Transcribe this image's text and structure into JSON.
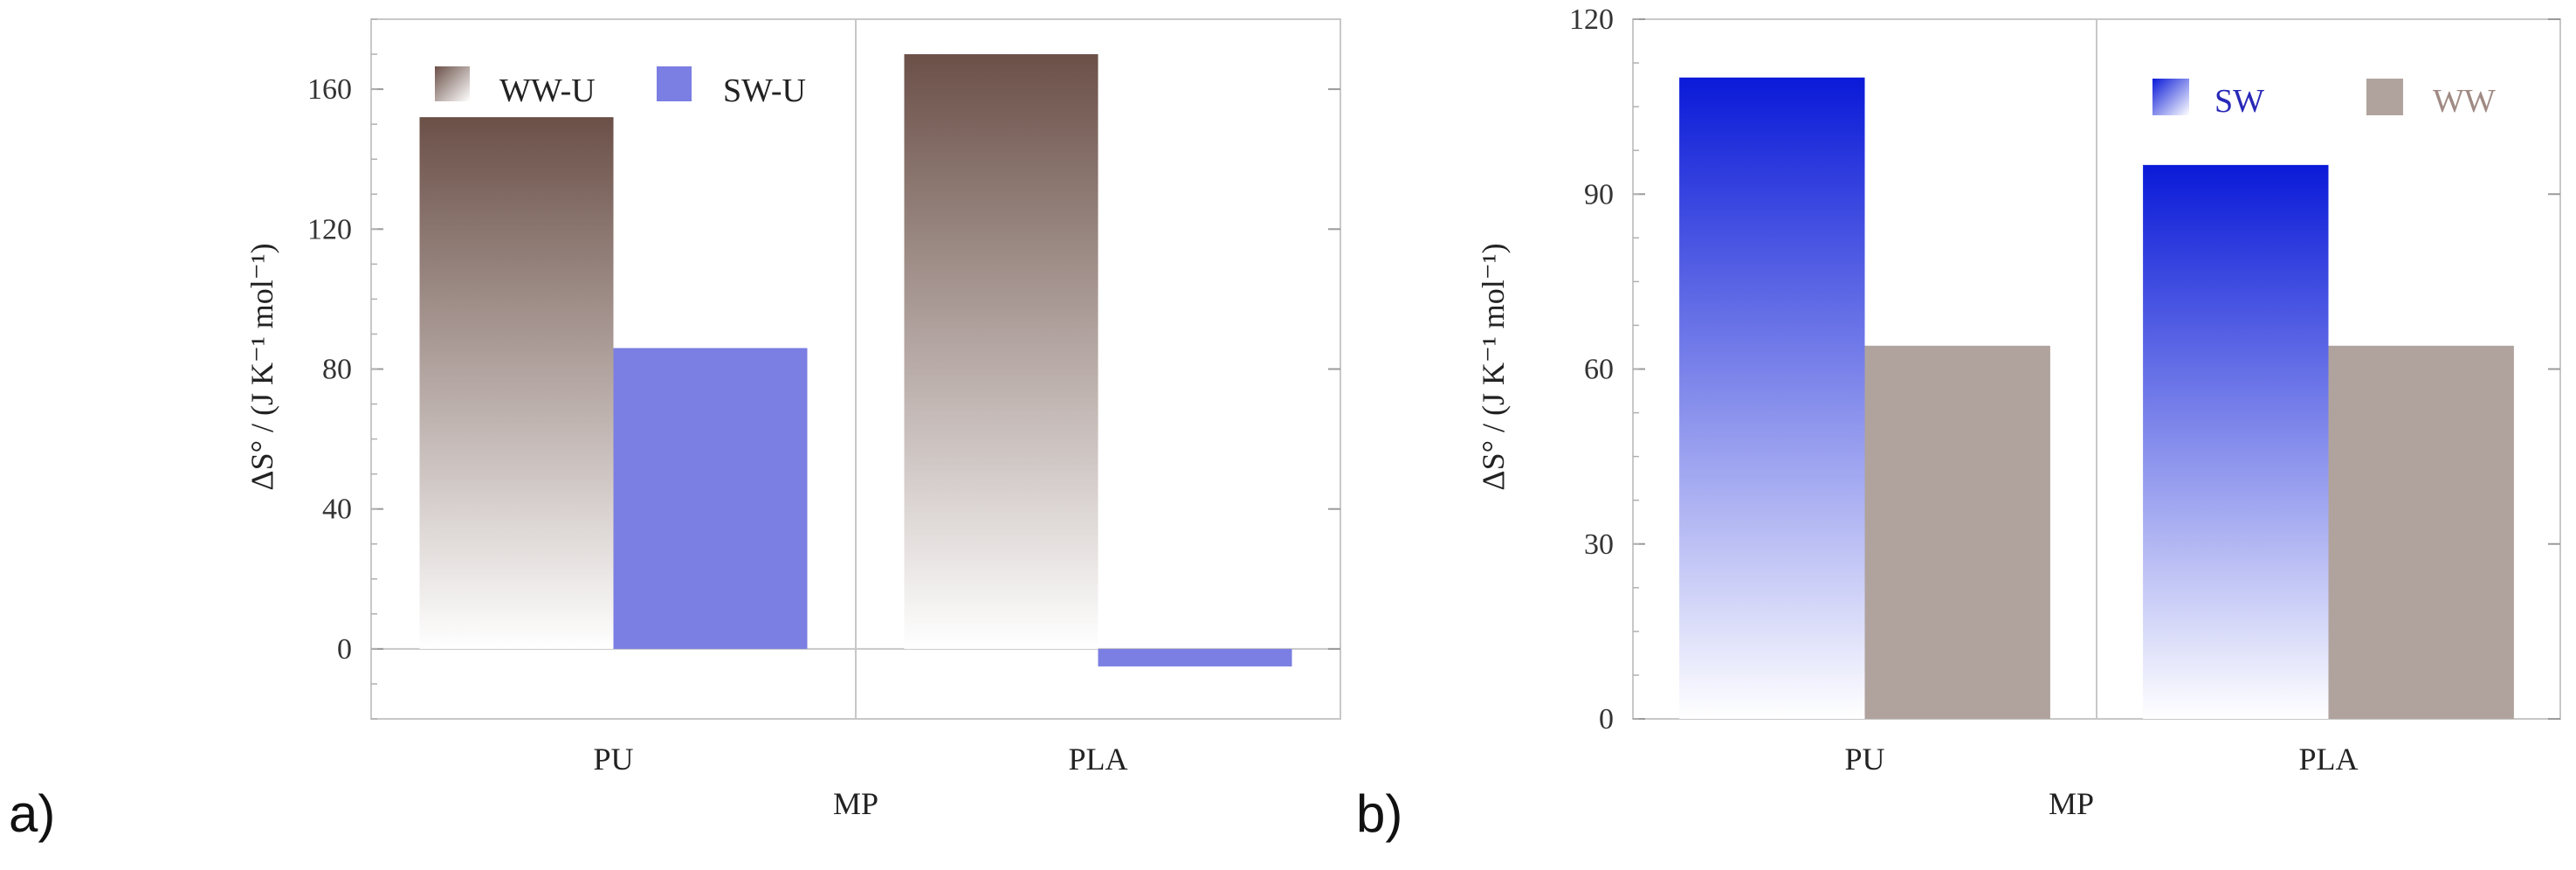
{
  "chart_data": [
    {
      "panel_label": "a)",
      "type": "bar",
      "xlabel": "MP",
      "ylabel": "ΔS° / (J K⁻¹ mol⁻¹)",
      "categories": [
        "PU",
        "PLA"
      ],
      "ylim": [
        -20,
        180
      ],
      "yticks": [
        0,
        40,
        80,
        120,
        160
      ],
      "legend_position": "top",
      "series": [
        {
          "name": "WW-U",
          "values": [
            152,
            170
          ],
          "color_top": "#6b5048",
          "color_bottom": "#ffffff",
          "fill": "gradient"
        },
        {
          "name": "SW-U",
          "values": [
            86,
            -5
          ],
          "color": "#7b7ee2",
          "fill": "solid"
        }
      ]
    },
    {
      "panel_label": "b)",
      "type": "bar",
      "xlabel": "MP",
      "ylabel": "ΔS° / (J K⁻¹ mol⁻¹)",
      "categories": [
        "PU",
        "PLA"
      ],
      "ylim": [
        0,
        120
      ],
      "yticks": [
        0,
        30,
        60,
        90,
        120
      ],
      "legend_position": "top-right",
      "series": [
        {
          "name": "SW",
          "values": [
            110,
            95
          ],
          "color_top": "#0a1ad8",
          "color_bottom": "#ffffff",
          "fill": "gradient",
          "label_color": "#2828b8"
        },
        {
          "name": "WW",
          "values": [
            64,
            64
          ],
          "color": "#b0a39e",
          "fill": "solid",
          "label_color": "#a08a84"
        }
      ]
    }
  ]
}
